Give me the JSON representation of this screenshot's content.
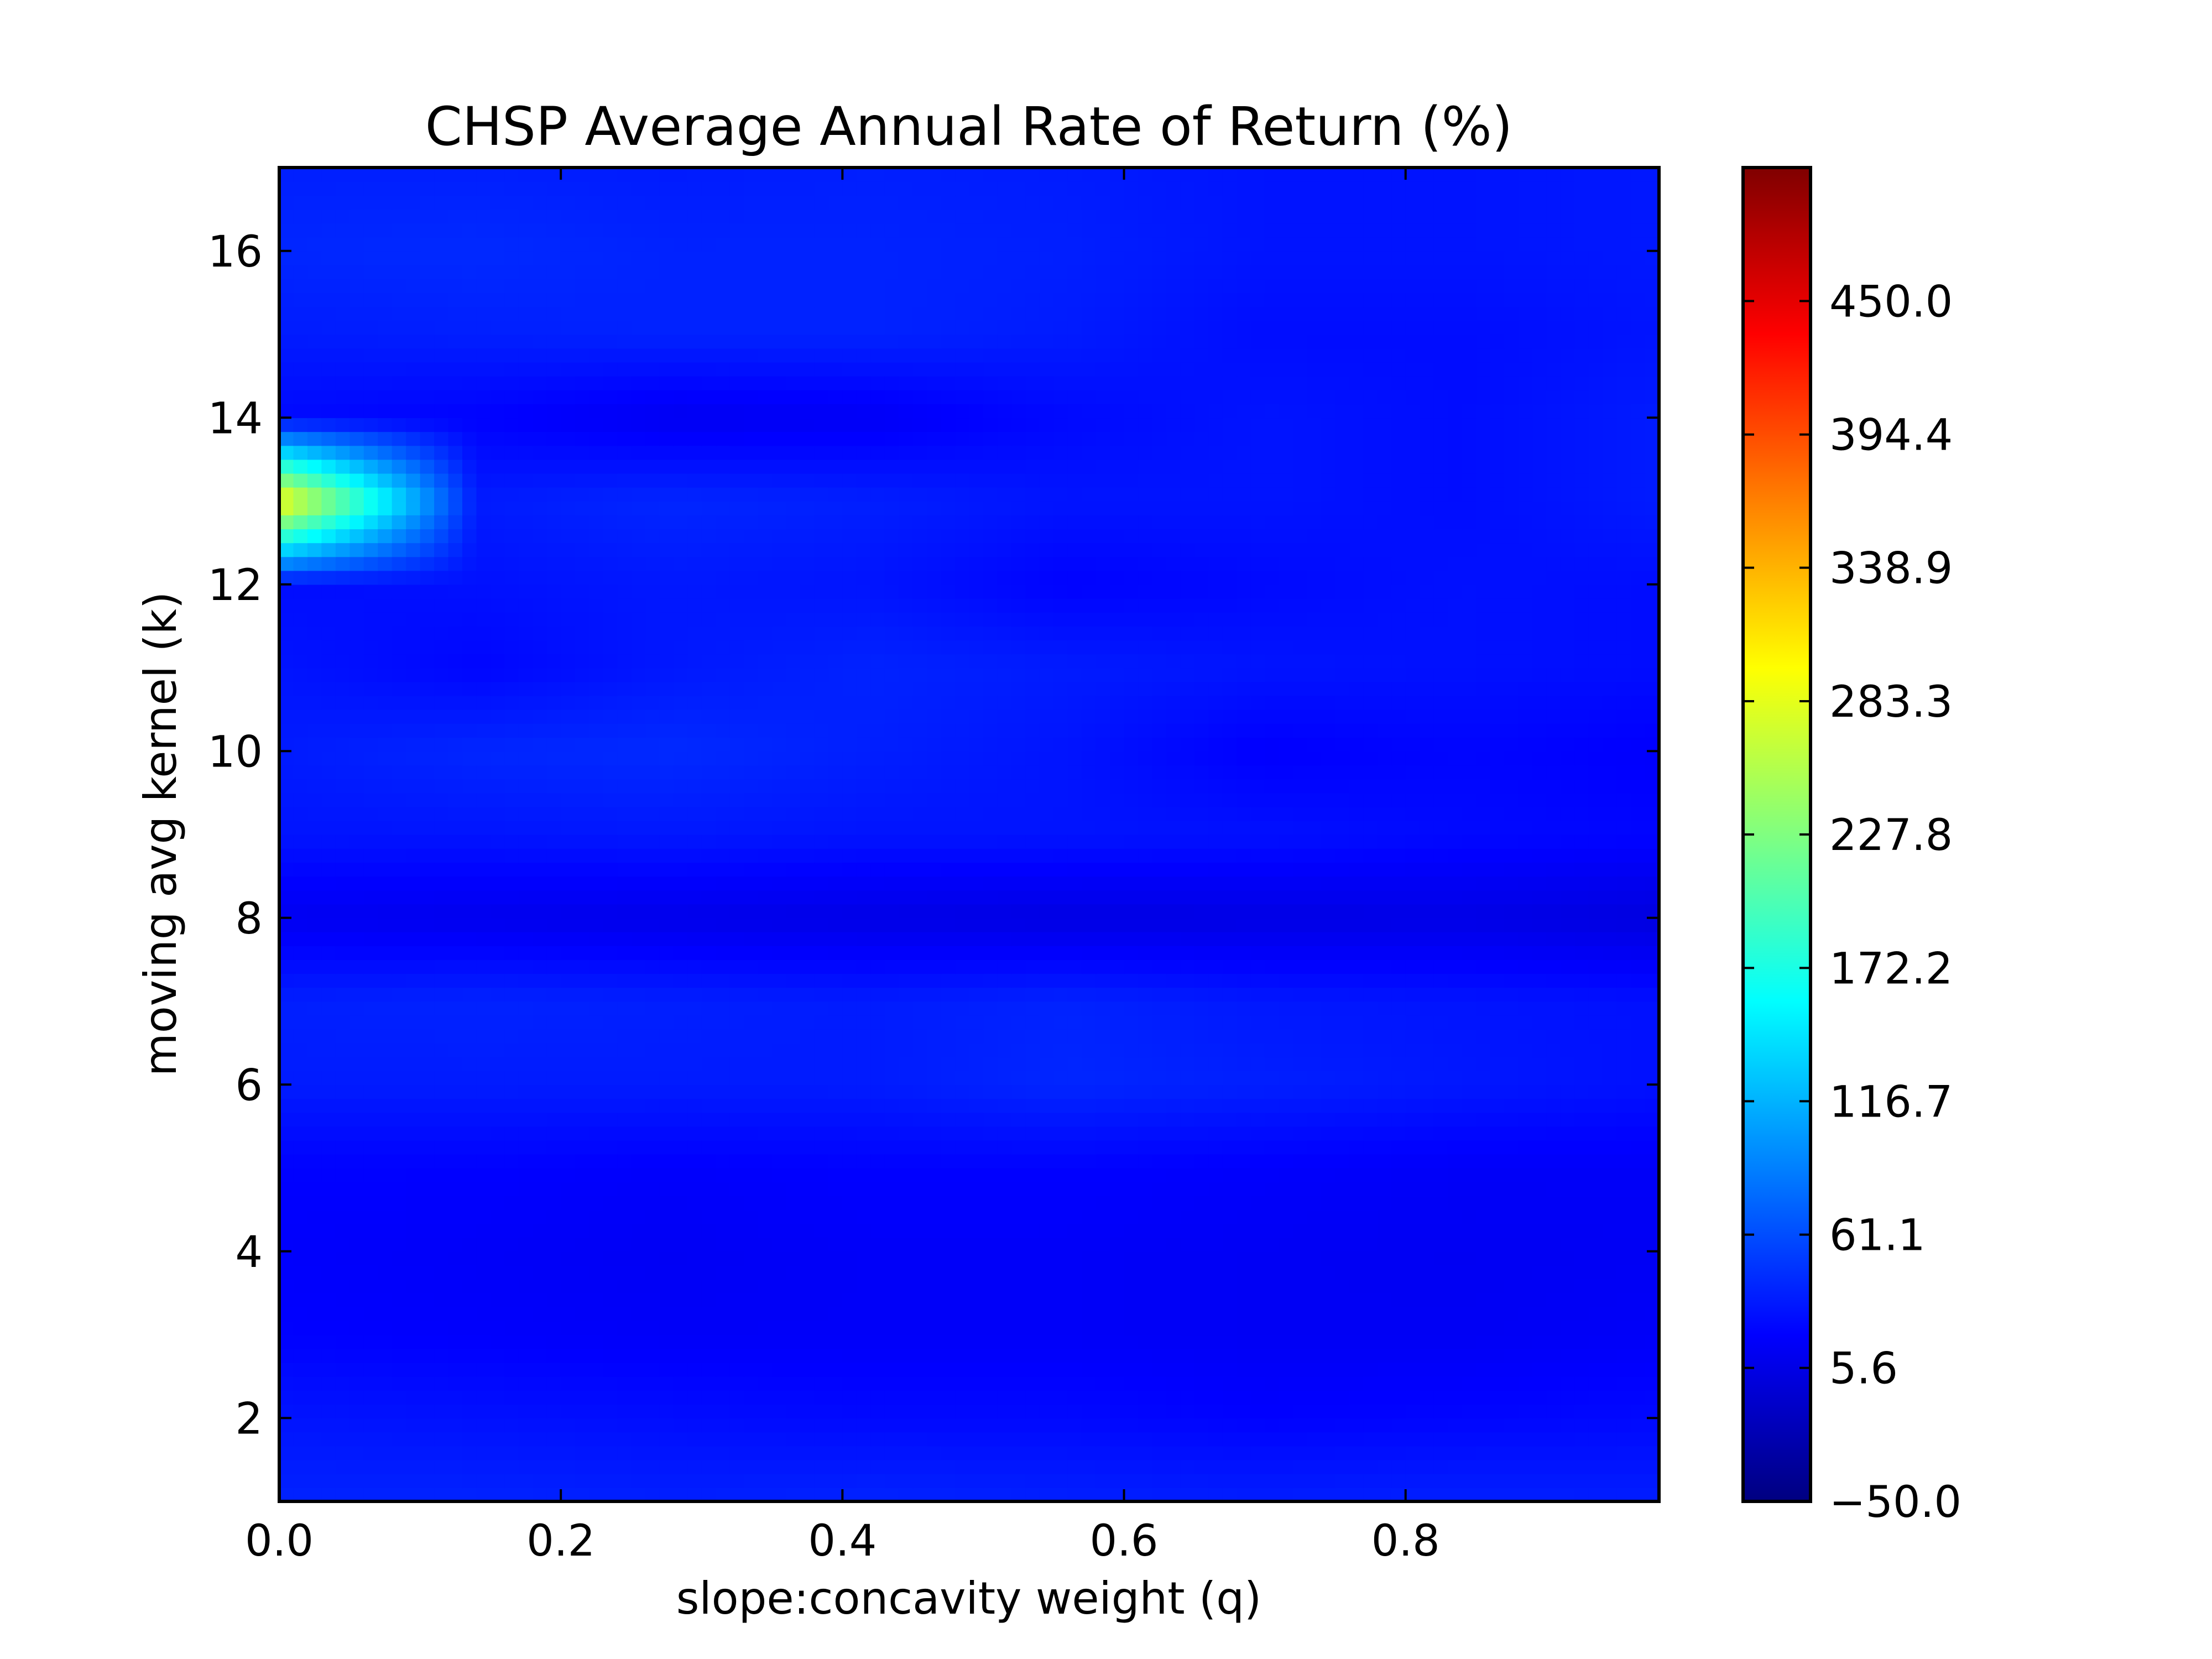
{
  "chart_data": {
    "type": "heatmap",
    "title": "CHSP Average Annual Rate of Return (%)",
    "xlabel": "slope:concavity weight (q)",
    "ylabel": "moving avg kernel (k)",
    "xlim": [
      0.0,
      0.98
    ],
    "ylim": [
      1,
      17
    ],
    "x_ticks": [
      "0.0",
      "0.2",
      "0.4",
      "0.6",
      "0.8"
    ],
    "y_ticks": [
      "2",
      "4",
      "6",
      "8",
      "10",
      "12",
      "14",
      "16"
    ],
    "colormap": "jet",
    "colorbar": {
      "min": -50.0,
      "max": 505.6,
      "tick_labels": [
        "−50.0",
        "5.6",
        "61.1",
        "116.7",
        "172.2",
        "227.8",
        "283.3",
        "338.9",
        "394.4",
        "450.0"
      ]
    },
    "grid": false,
    "x": [
      0.0,
      0.14,
      0.28,
      0.42,
      0.56,
      0.7,
      0.84,
      0.98
    ],
    "y": [
      1,
      2,
      3,
      4,
      5,
      6,
      7,
      8,
      9,
      10,
      11,
      12,
      13,
      14,
      15,
      16,
      17
    ],
    "z": [
      [
        38,
        38,
        36,
        38,
        36,
        35,
        36,
        35
      ],
      [
        30,
        28,
        26,
        24,
        24,
        20,
        22,
        24
      ],
      [
        20,
        18,
        16,
        16,
        16,
        14,
        14,
        16
      ],
      [
        18,
        16,
        14,
        16,
        16,
        14,
        13,
        14
      ],
      [
        20,
        20,
        18,
        20,
        20,
        18,
        16,
        16
      ],
      [
        34,
        34,
        34,
        34,
        40,
        36,
        32,
        28
      ],
      [
        36,
        38,
        36,
        34,
        38,
        32,
        30,
        28
      ],
      [
        12,
        10,
        8,
        6,
        4,
        5,
        6,
        2
      ],
      [
        30,
        30,
        32,
        30,
        30,
        28,
        24,
        22
      ],
      [
        34,
        40,
        42,
        36,
        30,
        18,
        22,
        18
      ],
      [
        30,
        22,
        32,
        38,
        34,
        30,
        28,
        26
      ],
      [
        26,
        28,
        32,
        30,
        20,
        24,
        28,
        26
      ],
      [
        300,
        34,
        40,
        36,
        30,
        30,
        26,
        34
      ],
      [
        24,
        20,
        12,
        14,
        24,
        30,
        26,
        34
      ],
      [
        34,
        36,
        38,
        38,
        34,
        26,
        26,
        30
      ],
      [
        40,
        42,
        38,
        38,
        36,
        30,
        30,
        32
      ],
      [
        36,
        36,
        34,
        36,
        34,
        30,
        30,
        32
      ]
    ]
  }
}
